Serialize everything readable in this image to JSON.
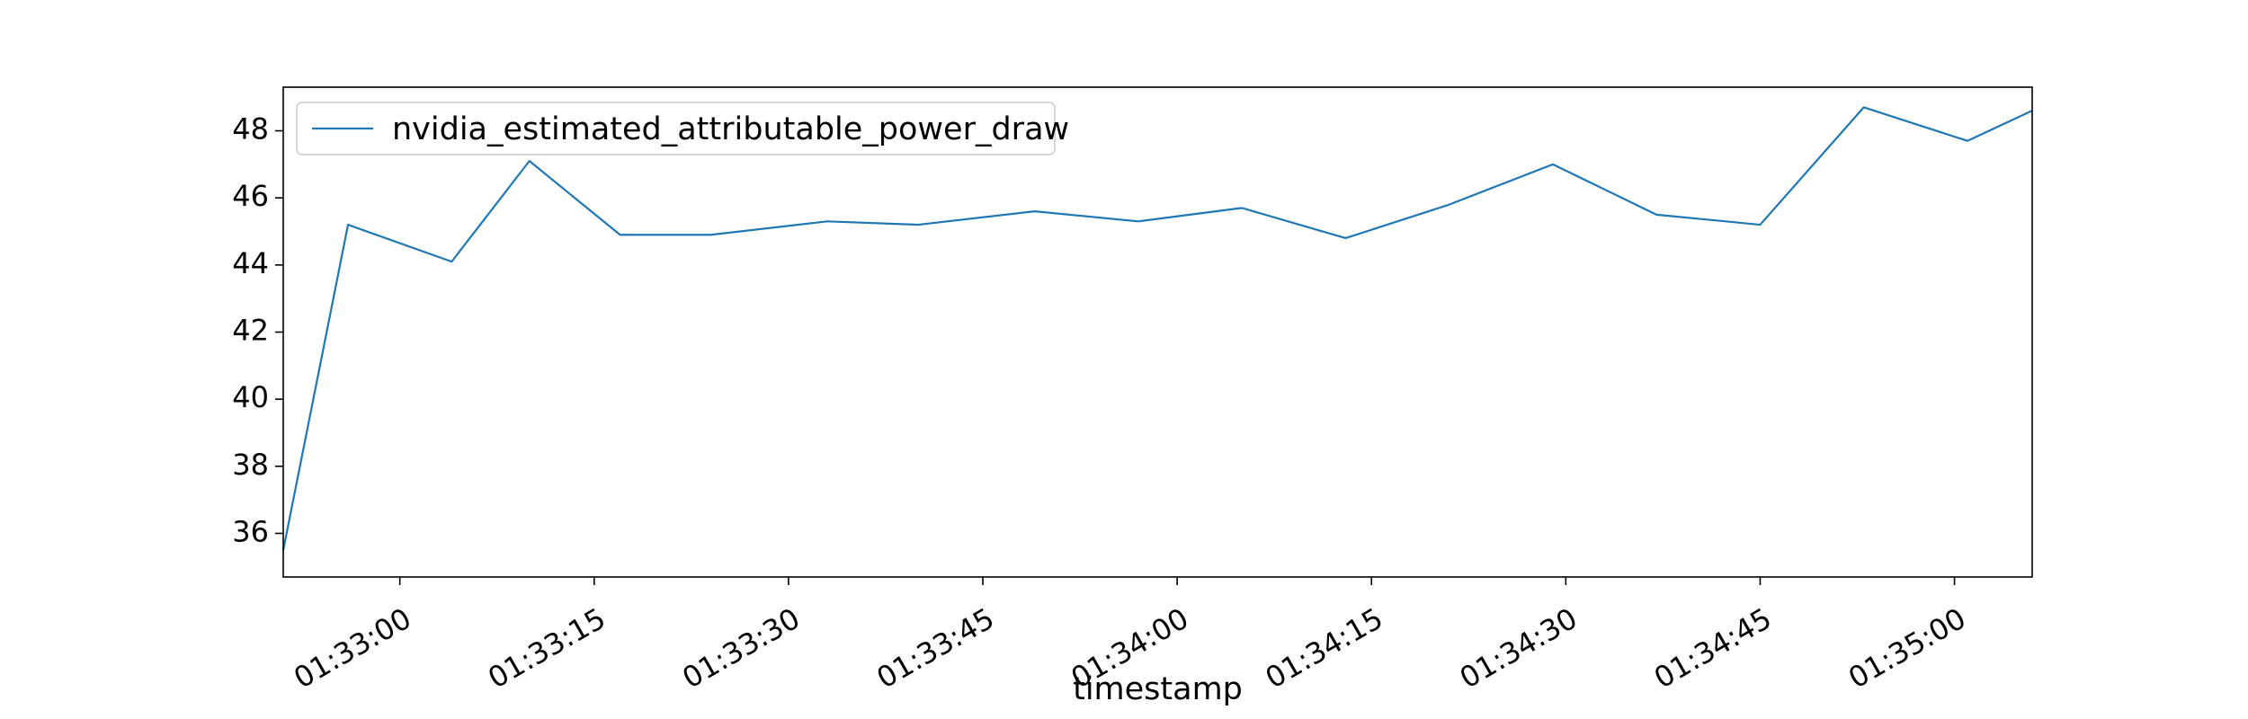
{
  "chart_data": {
    "type": "line",
    "title": "",
    "xlabel": "timestamp",
    "ylabel": "",
    "x_unit": "time of day (hh:mm:ss)",
    "x": [
      "01:32:51",
      "01:32:56",
      "01:33:04",
      "01:33:10",
      "01:33:17",
      "01:33:24",
      "01:33:33",
      "01:33:40",
      "01:33:49",
      "01:33:57",
      "01:34:05",
      "01:34:13",
      "01:34:21",
      "01:34:29",
      "01:34:37",
      "01:34:45",
      "01:34:53",
      "01:35:01",
      "01:35:06"
    ],
    "xlim": [
      "01:32:51",
      "01:35:06"
    ],
    "xticks": [
      "01:33:00",
      "01:33:15",
      "01:33:30",
      "01:33:45",
      "01:34:00",
      "01:34:15",
      "01:34:30",
      "01:34:45",
      "01:35:00"
    ],
    "ylim": [
      34.7,
      49.3
    ],
    "yticks": [
      36,
      38,
      40,
      42,
      44,
      46,
      48
    ],
    "series": [
      {
        "name": "nvidia_estimated_attributable_power_draw",
        "color": "#1f77b4",
        "values": [
          35.5,
          45.2,
          44.1,
          47.1,
          44.9,
          44.9,
          45.3,
          45.2,
          45.6,
          45.3,
          45.7,
          44.8,
          45.8,
          47.0,
          45.5,
          45.2,
          48.7,
          47.7,
          48.6
        ]
      }
    ],
    "grid": false,
    "legend": "upper-left"
  }
}
